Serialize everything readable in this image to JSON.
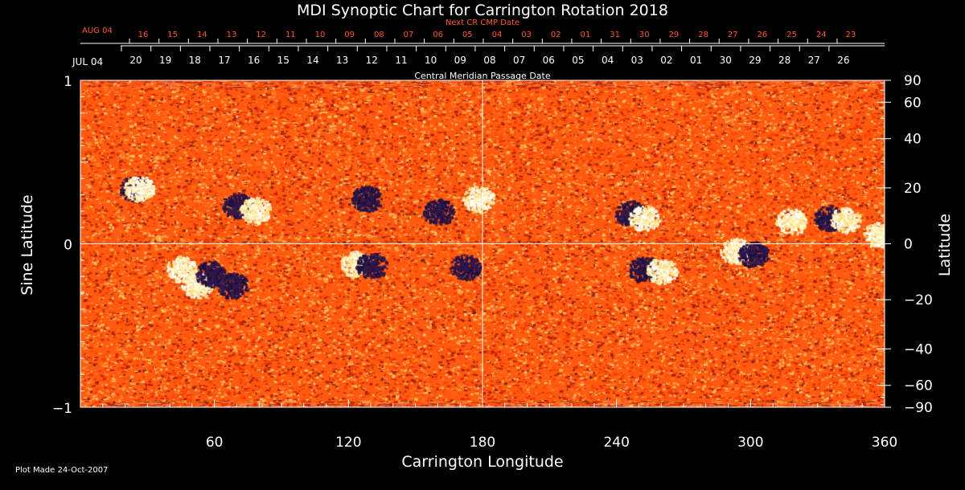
{
  "title": "MDI Synoptic Chart for Carrington Rotation 2018",
  "colors": {
    "background": "#000000",
    "map_base": "#ff5a10",
    "positive_polarity": "#ffffff",
    "negative_polarity": "#1a1040",
    "axis": "#ffffff",
    "next_cr_labels": "#ff5a2a"
  },
  "chart_data": {
    "type": "heatmap",
    "title": "MDI Synoptic Chart for Carrington Rotation 2018",
    "xlabel": "Carrington Longitude",
    "ylabel_left": "Sine Latitude",
    "ylabel_right": "Latitude",
    "xlim": [
      0,
      360
    ],
    "ylim": [
      -1,
      1
    ],
    "x_ticks": [
      60,
      120,
      180,
      240,
      300,
      360
    ],
    "y_ticks_left": [
      {
        "value": 1,
        "label": "1"
      },
      {
        "value": 0,
        "label": "0"
      },
      {
        "value": -1,
        "label": "−1"
      }
    ],
    "y_ticks_right": [
      90,
      60,
      40,
      20,
      0,
      -20,
      -40,
      -60,
      -90
    ],
    "reference_lines": {
      "longitude": 180,
      "sine_latitude": 0
    },
    "top_axes": {
      "current_cr": {
        "start_label": "JUL 04",
        "labels": [
          "20",
          "19",
          "18",
          "17",
          "16",
          "15",
          "14",
          "13",
          "12",
          "11",
          "10",
          "09",
          "08",
          "07",
          "06",
          "05",
          "04",
          "03",
          "02",
          "01",
          "30",
          "29",
          "28",
          "27",
          "26"
        ]
      },
      "next_cr": {
        "title": "Next CR CMP Date",
        "start_label": "AUG 04",
        "labels": [
          "16",
          "15",
          "14",
          "13",
          "12",
          "11",
          "10",
          "09",
          "08",
          "07",
          "06",
          "05",
          "04",
          "03",
          "02",
          "01",
          "31",
          "30",
          "29",
          "28",
          "27",
          "26",
          "25",
          "24",
          "23"
        ]
      },
      "axis_title": "Central Meridian Passage Date"
    },
    "active_regions": [
      {
        "lon": 24,
        "sinlat": 0.34,
        "polarity": "negative"
      },
      {
        "lon": 26,
        "sinlat": 0.34,
        "polarity": "positive"
      },
      {
        "lon": 70,
        "sinlat": 0.24,
        "polarity": "negative"
      },
      {
        "lon": 78,
        "sinlat": 0.21,
        "polarity": "positive"
      },
      {
        "lon": 128,
        "sinlat": 0.28,
        "polarity": "negative"
      },
      {
        "lon": 160,
        "sinlat": 0.2,
        "polarity": "negative"
      },
      {
        "lon": 178,
        "sinlat": 0.28,
        "polarity": "positive"
      },
      {
        "lon": 45,
        "sinlat": -0.15,
        "polarity": "positive"
      },
      {
        "lon": 52,
        "sinlat": -0.25,
        "polarity": "positive"
      },
      {
        "lon": 58,
        "sinlat": -0.18,
        "polarity": "negative"
      },
      {
        "lon": 68,
        "sinlat": -0.25,
        "polarity": "negative"
      },
      {
        "lon": 123,
        "sinlat": -0.12,
        "polarity": "positive"
      },
      {
        "lon": 130,
        "sinlat": -0.13,
        "polarity": "negative"
      },
      {
        "lon": 172,
        "sinlat": -0.14,
        "polarity": "negative"
      },
      {
        "lon": 246,
        "sinlat": 0.19,
        "polarity": "negative"
      },
      {
        "lon": 252,
        "sinlat": 0.16,
        "polarity": "positive"
      },
      {
        "lon": 252,
        "sinlat": -0.15,
        "polarity": "negative"
      },
      {
        "lon": 260,
        "sinlat": -0.16,
        "polarity": "positive"
      },
      {
        "lon": 293,
        "sinlat": -0.04,
        "polarity": "positive"
      },
      {
        "lon": 301,
        "sinlat": -0.06,
        "polarity": "negative"
      },
      {
        "lon": 318,
        "sinlat": 0.14,
        "polarity": "positive"
      },
      {
        "lon": 335,
        "sinlat": 0.16,
        "polarity": "negative"
      },
      {
        "lon": 342,
        "sinlat": 0.15,
        "polarity": "positive"
      },
      {
        "lon": 357,
        "sinlat": 0.06,
        "polarity": "positive"
      }
    ]
  },
  "footer": "Plot Made 24-Oct-2007"
}
